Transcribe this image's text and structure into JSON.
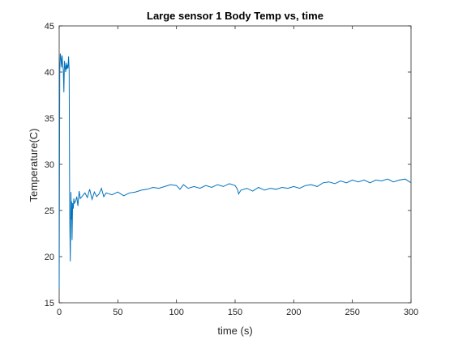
{
  "chart_data": {
    "type": "line",
    "title": "Large sensor 1 Body Temp vs, time",
    "xlabel": "time (s)",
    "ylabel": "Temperature(C)",
    "xlim": [
      0,
      300
    ],
    "ylim": [
      15,
      45
    ],
    "xticks": [
      0,
      50,
      100,
      150,
      200,
      250,
      300
    ],
    "yticks": [
      15,
      20,
      25,
      30,
      35,
      40,
      45
    ],
    "grid": false,
    "line_color": "#0072BD",
    "series": [
      {
        "x": [
          0,
          0.5,
          1,
          1.5,
          2,
          2.5,
          3,
          3.5,
          4,
          4.5,
          5,
          5.5,
          6,
          6.5,
          7,
          7.5,
          8,
          8.5,
          9,
          9.5,
          10,
          10.3,
          10.6,
          11,
          11.5,
          12,
          12.5,
          13,
          14,
          15,
          16,
          17,
          18,
          20,
          22,
          24,
          26,
          28,
          30,
          32,
          34,
          36,
          38,
          40,
          45,
          50,
          55,
          60,
          65,
          70,
          75,
          80,
          85,
          90,
          95,
          100,
          103,
          106,
          110,
          115,
          120,
          125,
          130,
          135,
          140,
          145,
          150,
          152,
          153,
          155,
          160,
          165,
          170,
          175,
          180,
          185,
          190,
          195,
          200,
          205,
          210,
          215,
          220,
          225,
          230,
          235,
          240,
          245,
          250,
          255,
          260,
          265,
          270,
          275,
          280,
          285,
          290,
          295,
          300
        ],
        "values": [
          16.5,
          40.0,
          42.0,
          41.5,
          40.5,
          41.8,
          40.8,
          40.2,
          37.8,
          41.2,
          40.6,
          40.0,
          41.0,
          40.3,
          40.8,
          40.4,
          41.7,
          40.2,
          24.5,
          19.5,
          27.0,
          24.0,
          26.0,
          21.8,
          25.8,
          25.2,
          26.3,
          25.8,
          26.0,
          26.5,
          25.5,
          27.1,
          26.3,
          26.6,
          26.9,
          26.4,
          27.3,
          26.2,
          27.0,
          26.5,
          26.8,
          27.4,
          26.5,
          26.9,
          26.7,
          27.0,
          26.6,
          26.9,
          27.0,
          27.2,
          27.3,
          27.5,
          27.4,
          27.6,
          27.8,
          27.7,
          27.3,
          27.8,
          27.4,
          27.6,
          27.4,
          27.7,
          27.5,
          27.8,
          27.6,
          27.9,
          27.7,
          27.3,
          26.8,
          27.2,
          27.4,
          27.1,
          27.5,
          27.2,
          27.4,
          27.3,
          27.5,
          27.4,
          27.6,
          27.4,
          27.7,
          27.8,
          27.6,
          28.0,
          28.1,
          27.9,
          28.2,
          28.0,
          28.3,
          28.1,
          28.3,
          28.0,
          28.3,
          28.2,
          28.4,
          28.1,
          28.3,
          28.4,
          28.0
        ]
      }
    ]
  }
}
